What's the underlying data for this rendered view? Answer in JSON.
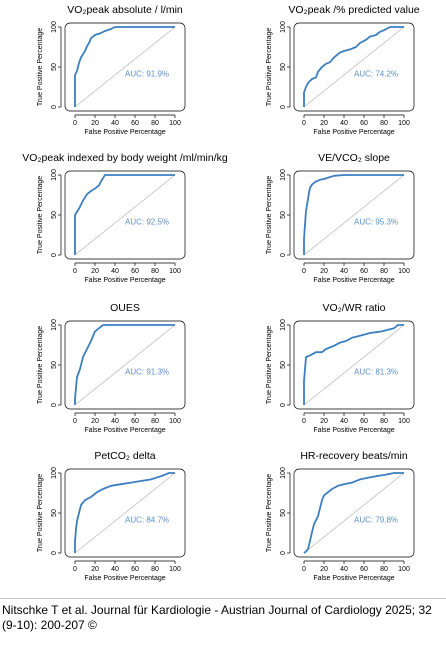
{
  "chart_data": [
    {
      "type": "line",
      "title": "VO₂peak absolute / l/min",
      "xlabel": "False Positive Percentage",
      "ylabel": "True Positive Percentage",
      "xlim": [
        0,
        100
      ],
      "ylim": [
        0,
        100
      ],
      "xticks": [
        "0",
        "20",
        "40",
        "60",
        "80",
        "100"
      ],
      "yticks": [
        "0",
        "50",
        "100"
      ],
      "annotation": "AUC: 91.9%",
      "roc": [
        [
          0,
          0
        ],
        [
          0,
          40
        ],
        [
          2,
          45
        ],
        [
          4,
          55
        ],
        [
          6,
          62
        ],
        [
          8,
          66
        ],
        [
          10,
          70
        ],
        [
          12,
          76
        ],
        [
          14,
          80
        ],
        [
          16,
          86
        ],
        [
          20,
          90
        ],
        [
          25,
          92
        ],
        [
          30,
          95
        ],
        [
          35,
          97
        ],
        [
          40,
          100
        ],
        [
          100,
          100
        ]
      ]
    },
    {
      "type": "line",
      "title": "VO₂peak /% predicted value",
      "xlabel": "False Positive Percentage",
      "ylabel": "True Positive Percentage",
      "xlim": [
        0,
        100
      ],
      "ylim": [
        0,
        100
      ],
      "xticks": [
        "0",
        "20",
        "40",
        "60",
        "80",
        "100"
      ],
      "yticks": [
        "0",
        "50",
        "100"
      ],
      "annotation": "AUC: 74.2%",
      "roc": [
        [
          0,
          0
        ],
        [
          0,
          18
        ],
        [
          2,
          25
        ],
        [
          4,
          30
        ],
        [
          8,
          35
        ],
        [
          12,
          37
        ],
        [
          14,
          44
        ],
        [
          18,
          50
        ],
        [
          22,
          54
        ],
        [
          26,
          56
        ],
        [
          30,
          62
        ],
        [
          34,
          66
        ],
        [
          36,
          68
        ],
        [
          40,
          70
        ],
        [
          46,
          72
        ],
        [
          52,
          75
        ],
        [
          56,
          80
        ],
        [
          62,
          84
        ],
        [
          66,
          88
        ],
        [
          72,
          90
        ],
        [
          76,
          94
        ],
        [
          80,
          96
        ],
        [
          86,
          100
        ],
        [
          100,
          100
        ]
      ]
    },
    {
      "type": "line",
      "title": "VO₂peak indexed by body weight /ml/min/kg",
      "xlabel": "False Positive Percentage",
      "ylabel": "True Positive Percentage",
      "xlim": [
        0,
        100
      ],
      "ylim": [
        0,
        100
      ],
      "xticks": [
        "0",
        "20",
        "40",
        "60",
        "80",
        "100"
      ],
      "yticks": [
        "0",
        "50",
        "100"
      ],
      "annotation": "AUC: 92.5%",
      "roc": [
        [
          0,
          0
        ],
        [
          0,
          50
        ],
        [
          4,
          58
        ],
        [
          8,
          68
        ],
        [
          12,
          76
        ],
        [
          16,
          80
        ],
        [
          20,
          83
        ],
        [
          24,
          87
        ],
        [
          26,
          92
        ],
        [
          28,
          96
        ],
        [
          30,
          100
        ],
        [
          100,
          100
        ]
      ]
    },
    {
      "type": "line",
      "title": "VE/VCO₂ slope",
      "xlabel": "False Positive Percentage",
      "ylabel": "True Positive Percentage",
      "xlim": [
        0,
        100
      ],
      "ylim": [
        0,
        100
      ],
      "xticks": [
        "0",
        "20",
        "40",
        "60",
        "80",
        "100"
      ],
      "yticks": [
        "0",
        "50",
        "100"
      ],
      "annotation": "AUC: 95.3%",
      "roc": [
        [
          0,
          0
        ],
        [
          0,
          20
        ],
        [
          1,
          38
        ],
        [
          2,
          55
        ],
        [
          4,
          70
        ],
        [
          5,
          78
        ],
        [
          6,
          84
        ],
        [
          8,
          88
        ],
        [
          12,
          92
        ],
        [
          16,
          94
        ],
        [
          20,
          95
        ],
        [
          25,
          97
        ],
        [
          30,
          99
        ],
        [
          40,
          100
        ],
        [
          100,
          100
        ]
      ]
    },
    {
      "type": "line",
      "title": "OUES",
      "xlabel": "False Positive Percentage",
      "ylabel": "True Positive Percentage",
      "xlim": [
        0,
        100
      ],
      "ylim": [
        0,
        100
      ],
      "xticks": [
        "0",
        "20",
        "40",
        "60",
        "80",
        "100"
      ],
      "yticks": [
        "0",
        "50",
        "100"
      ],
      "annotation": "AUC: 91.3%",
      "roc": [
        [
          0,
          0
        ],
        [
          0,
          8
        ],
        [
          2,
          35
        ],
        [
          5,
          45
        ],
        [
          8,
          60
        ],
        [
          12,
          70
        ],
        [
          16,
          80
        ],
        [
          20,
          92
        ],
        [
          24,
          96
        ],
        [
          28,
          100
        ],
        [
          100,
          100
        ]
      ]
    },
    {
      "type": "line",
      "title": "VO₂/WR ratio",
      "xlabel": "False Positive Percentage",
      "ylabel": "True Positive Percentage",
      "xlim": [
        0,
        100
      ],
      "ylim": [
        0,
        100
      ],
      "xticks": [
        "0",
        "20",
        "40",
        "60",
        "80",
        "100"
      ],
      "yticks": [
        "0",
        "50",
        "100"
      ],
      "annotation": "AUC: 81.3%",
      "roc": [
        [
          0,
          0
        ],
        [
          0,
          30
        ],
        [
          2,
          60
        ],
        [
          6,
          62
        ],
        [
          12,
          66
        ],
        [
          18,
          66
        ],
        [
          22,
          70
        ],
        [
          30,
          74
        ],
        [
          36,
          78
        ],
        [
          42,
          80
        ],
        [
          48,
          84
        ],
        [
          54,
          86
        ],
        [
          60,
          88
        ],
        [
          66,
          90
        ],
        [
          72,
          91
        ],
        [
          78,
          92
        ],
        [
          84,
          94
        ],
        [
          90,
          96
        ],
        [
          94,
          100
        ],
        [
          100,
          100
        ]
      ]
    },
    {
      "type": "line",
      "title": "PetCO₂ delta",
      "xlabel": "False Positive Percentage",
      "ylabel": "True Positive Percentage",
      "xlim": [
        0,
        100
      ],
      "ylim": [
        0,
        100
      ],
      "xticks": [
        "0",
        "20",
        "40",
        "60",
        "80",
        "100"
      ],
      "yticks": [
        "0",
        "50",
        "100"
      ],
      "annotation": "AUC: 84.7%",
      "roc": [
        [
          0,
          0
        ],
        [
          0,
          15
        ],
        [
          1,
          30
        ],
        [
          2,
          40
        ],
        [
          4,
          50
        ],
        [
          6,
          60
        ],
        [
          10,
          66
        ],
        [
          16,
          70
        ],
        [
          22,
          76
        ],
        [
          28,
          80
        ],
        [
          36,
          84
        ],
        [
          46,
          86
        ],
        [
          56,
          88
        ],
        [
          66,
          90
        ],
        [
          76,
          92
        ],
        [
          86,
          96
        ],
        [
          94,
          100
        ],
        [
          100,
          100
        ]
      ]
    },
    {
      "type": "line",
      "title": "HR-recovery beats/min",
      "xlabel": "False Positive Percentage",
      "ylabel": "True Positive Percentage",
      "xlim": [
        0,
        100
      ],
      "ylim": [
        0,
        100
      ],
      "xticks": [
        "0",
        "20",
        "40",
        "60",
        "80",
        "100"
      ],
      "yticks": [
        "0",
        "50",
        "100"
      ],
      "annotation": "AUC: 79.8%",
      "roc": [
        [
          0,
          0
        ],
        [
          2,
          2
        ],
        [
          4,
          5
        ],
        [
          6,
          15
        ],
        [
          8,
          26
        ],
        [
          10,
          36
        ],
        [
          14,
          46
        ],
        [
          16,
          56
        ],
        [
          18,
          66
        ],
        [
          20,
          72
        ],
        [
          24,
          76
        ],
        [
          28,
          80
        ],
        [
          34,
          84
        ],
        [
          40,
          86
        ],
        [
          48,
          88
        ],
        [
          56,
          92
        ],
        [
          64,
          94
        ],
        [
          72,
          96
        ],
        [
          82,
          98
        ],
        [
          90,
          100
        ],
        [
          100,
          100
        ]
      ]
    }
  ],
  "colors": {
    "curve": "#3d7ebf",
    "diagonal": "#b5b5b5",
    "annotation": "#5b8fc7",
    "frame": "#000000"
  },
  "citation": "Nitschke T et al. Journal für Kardiologie - Austrian Journal of Cardiology 2025; 32 (9-10): 200-207 ©"
}
